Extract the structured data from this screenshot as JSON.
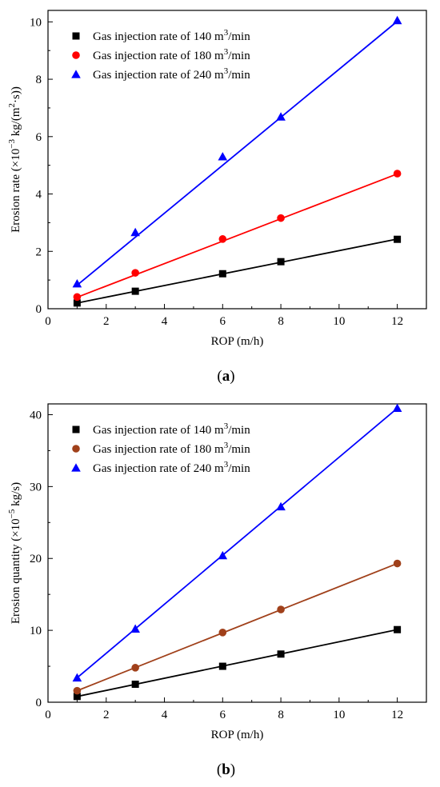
{
  "chart_data": [
    {
      "type": "scatter",
      "panel_label": "a",
      "xlabel": "ROP (m/h)",
      "ylabel": "Erosion rate (×10^-3 kg/(m^2·s))",
      "ylabel_parts": {
        "prefix": "Erosion rate (×10",
        "exp": "−3",
        "mid": " kg/(m",
        "exp2": "2",
        "suffix": "·s))"
      },
      "xlim": [
        0,
        13
      ],
      "ylim": [
        0,
        10.4
      ],
      "xticks": [
        0,
        2,
        4,
        6,
        8,
        10,
        12
      ],
      "yticks": [
        0,
        2,
        4,
        6,
        8,
        10
      ],
      "grid": false,
      "legend_position": "top-left",
      "x": [
        1,
        3,
        6,
        8,
        12
      ],
      "series": [
        {
          "name": "Gas injection rate of 140 m3/min",
          "label_prefix": "Gas injection rate of 140 m",
          "label_sup": "3",
          "label_suffix": "/min",
          "marker": "square",
          "color": "#000000",
          "values": [
            0.2,
            0.61,
            1.22,
            1.64,
            2.42
          ],
          "fit": [
            0.2,
            2.43
          ]
        },
        {
          "name": "Gas injection rate of 180 m3/min",
          "label_prefix": "Gas injection rate of 180 m",
          "label_sup": "3",
          "label_suffix": "/min",
          "marker": "circle",
          "color": "#ff0000",
          "values": [
            0.41,
            1.25,
            2.43,
            3.16,
            4.71
          ],
          "fit": [
            0.4,
            4.7
          ]
        },
        {
          "name": "Gas injection rate of 240 m3/min",
          "label_prefix": "Gas injection rate of 240 m",
          "label_sup": "3",
          "label_suffix": "/min",
          "marker": "triangle",
          "color": "#0000ff",
          "values": [
            0.87,
            2.66,
            5.3,
            6.69,
            10.05
          ],
          "fit": [
            0.82,
            10.02
          ]
        }
      ]
    },
    {
      "type": "scatter",
      "panel_label": "b",
      "xlabel": "ROP (m/h)",
      "ylabel": "Erosion quantity (×10^-5 kg/s)",
      "ylabel_parts": {
        "prefix": "Erosion quantity (×10",
        "exp": "−5",
        "mid": " kg/s)",
        "exp2": "",
        "suffix": ""
      },
      "xlim": [
        0,
        13
      ],
      "ylim": [
        0,
        41.5
      ],
      "xticks": [
        0,
        2,
        4,
        6,
        8,
        10,
        12
      ],
      "yticks": [
        0,
        10,
        20,
        30,
        40
      ],
      "grid": false,
      "legend_position": "top-left",
      "x": [
        1,
        3,
        6,
        8,
        12
      ],
      "series": [
        {
          "name": "Gas injection rate of 140 m3/min",
          "label_prefix": "Gas injection rate of 140 m",
          "label_sup": "3",
          "label_suffix": "/min",
          "marker": "square",
          "color": "#000000",
          "values": [
            0.8,
            2.5,
            5.0,
            6.7,
            10.1
          ],
          "fit": [
            0.8,
            10.1
          ]
        },
        {
          "name": "Gas injection rate of 180 m3/min",
          "label_prefix": "Gas injection rate of 180 m",
          "label_sup": "3",
          "label_suffix": "/min",
          "marker": "circle",
          "color": "#a0401a",
          "values": [
            1.6,
            4.8,
            9.7,
            12.9,
            19.3
          ],
          "fit": [
            1.6,
            19.3
          ]
        },
        {
          "name": "Gas injection rate of 240 m3/min",
          "label_prefix": "Gas injection rate of 240 m",
          "label_sup": "3",
          "label_suffix": "/min",
          "marker": "triangle",
          "color": "#0000ff",
          "values": [
            3.4,
            10.2,
            20.4,
            27.2,
            40.9
          ],
          "fit": [
            3.4,
            40.9
          ]
        }
      ]
    }
  ]
}
